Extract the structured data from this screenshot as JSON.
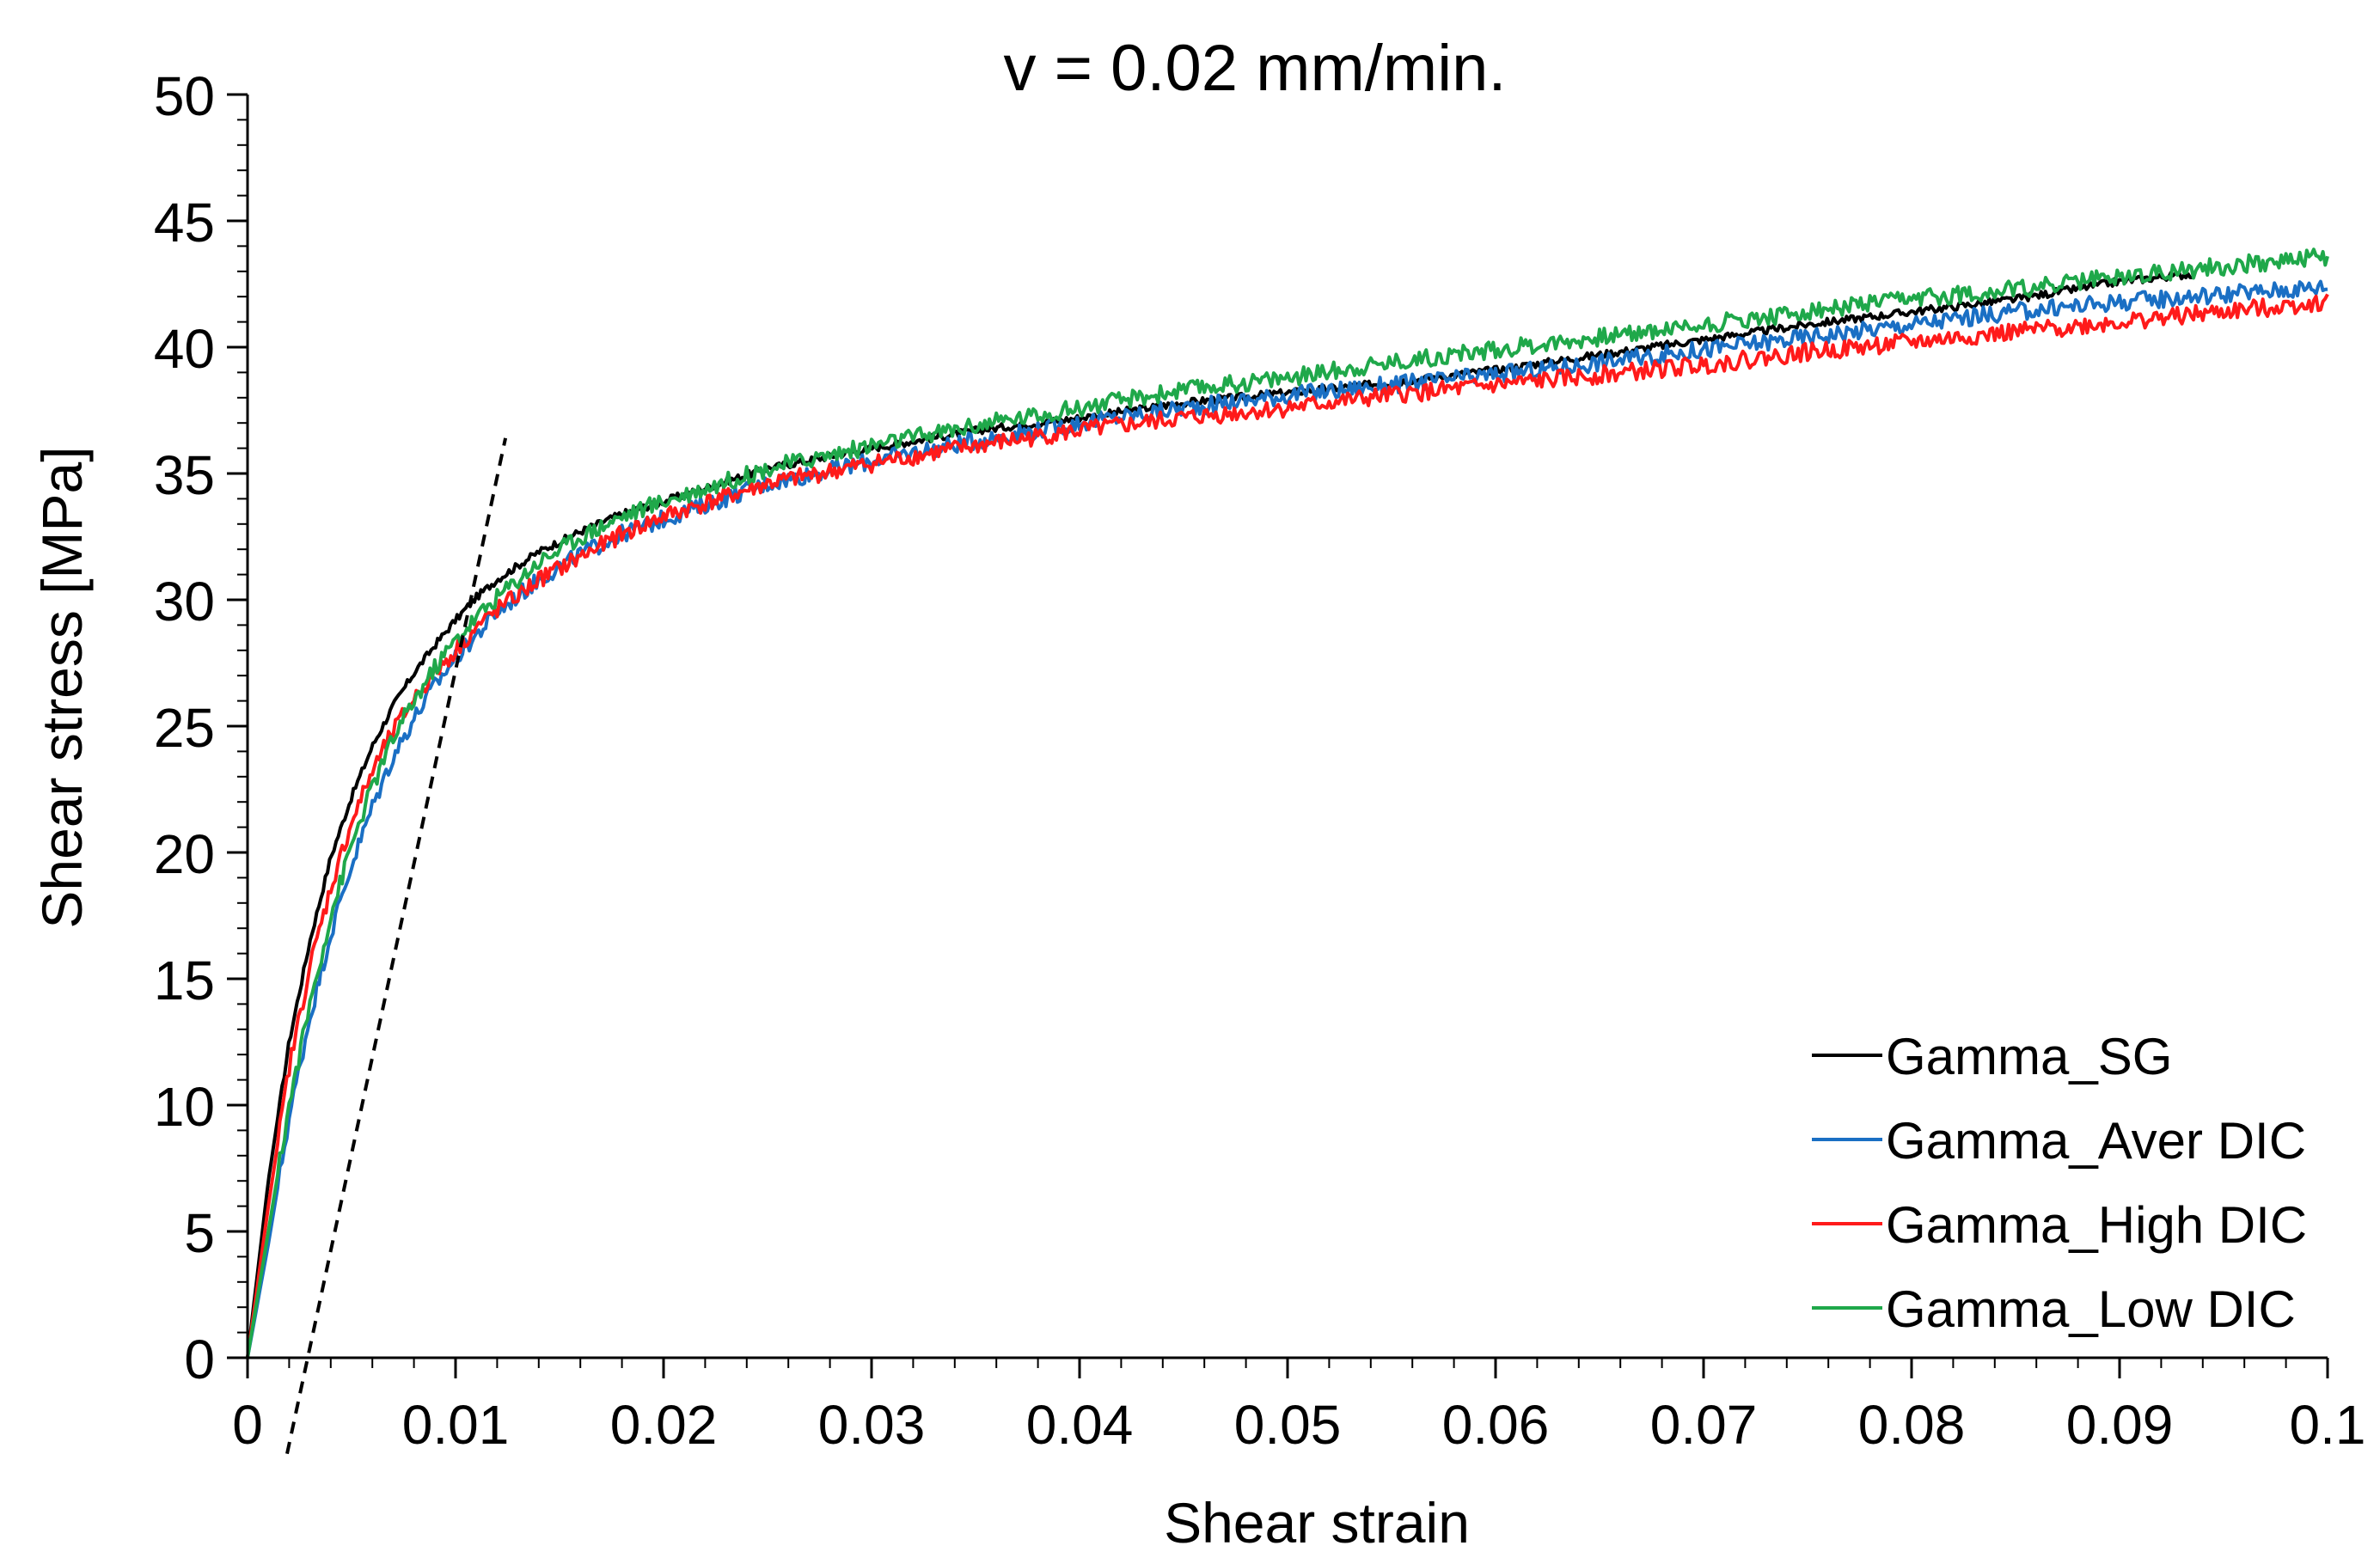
{
  "chart_data": {
    "type": "line",
    "title": "v = 0.02 mm/min.",
    "xlabel": "Shear strain",
    "ylabel": "Shear  stress [MPa]",
    "xlim": [
      0,
      0.1
    ],
    "ylim": [
      0,
      50
    ],
    "xticks": [
      0,
      0.01,
      0.02,
      0.03,
      0.04,
      0.05,
      0.06,
      0.07,
      0.08,
      0.09,
      0.1
    ],
    "xtick_labels": [
      "0",
      "0.01",
      "0.02",
      "0.03",
      "0.04",
      "0.05",
      "0.06",
      "0.07",
      "0.08",
      "0.09",
      "0.1"
    ],
    "yticks": [
      0,
      5,
      10,
      15,
      20,
      25,
      30,
      35,
      40,
      45,
      50
    ],
    "ytick_labels": [
      "0",
      "5",
      "10",
      "15",
      "20",
      "25",
      "30",
      "35",
      "40",
      "45",
      "50"
    ],
    "grid": false,
    "legend_position": "bottom-right",
    "series": [
      {
        "name": "Gamma_SG",
        "color": "#000000",
        "noise": 0.15,
        "x": [
          0,
          0.001,
          0.002,
          0.003,
          0.004,
          0.005,
          0.006,
          0.007,
          0.008,
          0.009,
          0.01,
          0.011,
          0.012,
          0.014,
          0.016,
          0.018,
          0.02,
          0.025,
          0.03,
          0.035,
          0.04,
          0.045,
          0.05,
          0.055,
          0.06,
          0.065,
          0.07,
          0.075,
          0.08,
          0.085,
          0.09,
          0.0935
        ],
        "y": [
          0,
          7,
          12.5,
          16.5,
          19.8,
          22.2,
          24.2,
          25.8,
          27.1,
          28.2,
          29.2,
          30.1,
          30.8,
          31.9,
          32.7,
          33.4,
          33.9,
          35.2,
          36,
          36.7,
          37.2,
          37.8,
          38.2,
          38.6,
          39.1,
          39.7,
          40.3,
          40.9,
          41.4,
          41.9,
          42.6,
          42.9
        ]
      },
      {
        "name": "Gamma_Aver DIC",
        "color": "#1a6fc4",
        "noise": 0.35,
        "x": [
          0,
          0.001,
          0.002,
          0.003,
          0.004,
          0.005,
          0.006,
          0.007,
          0.008,
          0.009,
          0.01,
          0.011,
          0.012,
          0.014,
          0.016,
          0.018,
          0.02,
          0.025,
          0.03,
          0.035,
          0.04,
          0.045,
          0.05,
          0.055,
          0.06,
          0.065,
          0.07,
          0.075,
          0.08,
          0.085,
          0.09,
          0.095,
          0.1
        ],
        "y": [
          0,
          4.5,
          9.5,
          13.5,
          16.8,
          19.5,
          21.8,
          23.8,
          25.3,
          26.6,
          27.7,
          28.6,
          29.5,
          30.8,
          31.8,
          32.6,
          33.2,
          34.6,
          35.5,
          36.3,
          37,
          37.6,
          38.1,
          38.5,
          38.9,
          39.4,
          39.9,
          40.4,
          40.9,
          41.4,
          41.8,
          42.1,
          42.4
        ]
      },
      {
        "name": "Gamma_High DIC",
        "color": "#ff1a1a",
        "noise": 0.35,
        "x": [
          0,
          0.001,
          0.002,
          0.003,
          0.004,
          0.005,
          0.006,
          0.007,
          0.008,
          0.009,
          0.01,
          0.011,
          0.012,
          0.014,
          0.016,
          0.018,
          0.02,
          0.025,
          0.03,
          0.035,
          0.04,
          0.045,
          0.05,
          0.055,
          0.06,
          0.065,
          0.07,
          0.075,
          0.08,
          0.085,
          0.09,
          0.095,
          0.1
        ],
        "y": [
          0,
          6,
          11.5,
          15.5,
          18.6,
          21.2,
          23.2,
          24.8,
          26.1,
          27.1,
          28,
          28.9,
          29.6,
          30.8,
          31.7,
          32.6,
          33.3,
          34.6,
          35.4,
          36.1,
          36.7,
          37.2,
          37.6,
          38.1,
          38.5,
          38.9,
          39.3,
          39.8,
          40.2,
          40.6,
          41,
          41.4,
          41.8
        ]
      },
      {
        "name": "Gamma_Low DIC",
        "color": "#1fa84a",
        "noise": 0.35,
        "x": [
          0,
          0.001,
          0.002,
          0.003,
          0.004,
          0.005,
          0.006,
          0.007,
          0.008,
          0.009,
          0.01,
          0.011,
          0.012,
          0.014,
          0.016,
          0.018,
          0.02,
          0.025,
          0.03,
          0.035,
          0.04,
          0.045,
          0.05,
          0.055,
          0.06,
          0.065,
          0.07,
          0.075,
          0.08,
          0.085,
          0.09,
          0.095,
          0.1
        ],
        "y": [
          0,
          5,
          10,
          14,
          17.5,
          20.3,
          22.6,
          24.5,
          26,
          27.3,
          28.4,
          29.3,
          30.1,
          31.5,
          32.5,
          33.3,
          33.9,
          35.2,
          36.1,
          36.9,
          37.6,
          38.3,
          38.8,
          39.4,
          39.9,
          40.4,
          40.9,
          41.4,
          41.9,
          42.3,
          42.8,
          43.2,
          43.6
        ]
      },
      {
        "name": "Elastic tangent",
        "color": "#000000",
        "dashed": true,
        "in_legend": false,
        "x": [
          0.0019,
          0.0124
        ],
        "y": [
          -3.8,
          36.4
        ]
      }
    ]
  }
}
